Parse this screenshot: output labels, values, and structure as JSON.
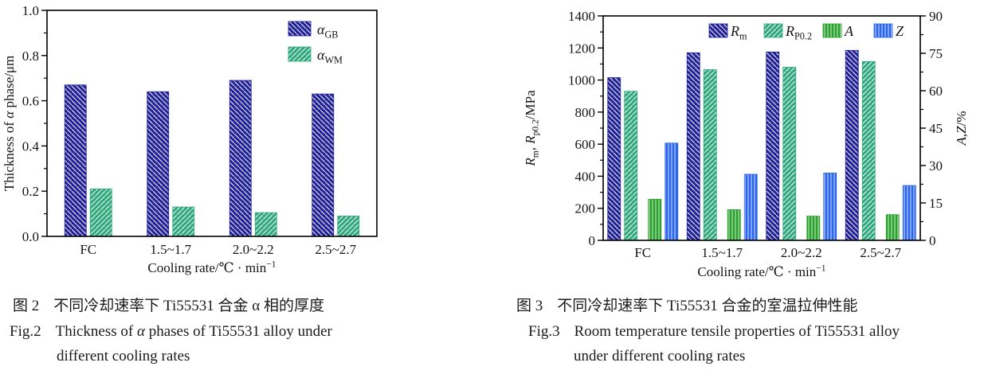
{
  "page": {
    "background": "#ffffff"
  },
  "colors": {
    "navy": "#21219a",
    "teal": "#2fa87e",
    "green": "#28a22b",
    "blue": "#2b66e8",
    "hatch_line": "#ffffff",
    "axis": "#000000",
    "text": "#141414"
  },
  "chart_data": [
    {
      "id": "fig2-chart",
      "type": "bar",
      "title": "",
      "categories": [
        "FC",
        "1.5~1.7",
        "2.0~2.2",
        "2.5~2.7"
      ],
      "xlabel": "Cooling rate/℃ · min−1",
      "xlabel_segments": [
        {
          "t": "Cooling rate/℃ · min"
        },
        {
          "t": "−1",
          "sup": true
        }
      ],
      "ylabel": "Thickness of α phase/μm",
      "ylabel_segments": [
        {
          "t": "Thickness of "
        },
        {
          "t": "α",
          "i": true
        },
        {
          "t": " phase/μm"
        }
      ],
      "ylim": [
        0,
        1.0
      ],
      "ytick_values": [
        0,
        0.2,
        0.4,
        0.6,
        0.8,
        1.0
      ],
      "ytick_labels": [
        "0.0",
        "0.2",
        "0.4",
        "0.6",
        "0.8",
        "1.0"
      ],
      "minor_tick_step": 0.1,
      "grid": false,
      "legend_position": "upper-right-inside",
      "legend_orientation": "vertical",
      "series": [
        {
          "name": "alpha-GB",
          "legend_text": "αGB",
          "legend_segments": [
            {
              "t": "α",
              "i": true
            },
            {
              "t": "GB",
              "sub": true
            }
          ],
          "values": [
            0.67,
            0.64,
            0.69,
            0.63
          ],
          "color": "#21219a",
          "hatch": "backslash"
        },
        {
          "name": "alpha-WM",
          "legend_text": "αWM",
          "legend_segments": [
            {
              "t": "α",
              "i": true
            },
            {
              "t": "WM",
              "sub": true
            }
          ],
          "values": [
            0.21,
            0.13,
            0.105,
            0.09
          ],
          "color": "#2fa87e",
          "hatch": "slash"
        }
      ]
    },
    {
      "id": "fig3-chart",
      "type": "bar",
      "title": "",
      "categories": [
        "FC",
        "1.5~1.7",
        "2.0~2.2",
        "2.5~2.7"
      ],
      "xlabel": "Cooling rate/℃ · min−1",
      "xlabel_segments": [
        {
          "t": "Cooling rate/℃ · min"
        },
        {
          "t": "−1",
          "sup": true
        }
      ],
      "ylabel_left": "Rm, Rp0.2/MPa",
      "ylabel_left_segments": [
        {
          "t": "R",
          "i": true
        },
        {
          "t": "m",
          "sub": true
        },
        {
          "t": ", "
        },
        {
          "t": "R",
          "i": true
        },
        {
          "t": "p0.2",
          "sub": true
        },
        {
          "t": "/MPa"
        }
      ],
      "ylabel_right": "A,Z/%",
      "ylabel_right_segments": [
        {
          "t": "A",
          "i": true
        },
        {
          "t": ","
        },
        {
          "t": "Z",
          "i": true
        },
        {
          "t": "/%"
        }
      ],
      "ylim_left": [
        0,
        1400
      ],
      "ytick_values_left": [
        0,
        200,
        400,
        600,
        800,
        1000,
        1200,
        1400
      ],
      "ytick_labels_left": [
        "0",
        "200",
        "400",
        "600",
        "800",
        "1000",
        "1200",
        "1400"
      ],
      "minor_tick_step_left": 100,
      "ylim_right": [
        0,
        90
      ],
      "ytick_values_right": [
        0,
        15,
        30,
        45,
        60,
        75,
        90
      ],
      "ytick_labels_right": [
        "0",
        "15",
        "30",
        "45",
        "60",
        "75",
        "90"
      ],
      "minor_tick_step_right": 7.5,
      "grid": false,
      "legend_position": "top-inside",
      "legend_orientation": "horizontal",
      "series": [
        {
          "name": "Rm",
          "axis": "left",
          "legend_text": "Rm",
          "legend_segments": [
            {
              "t": "R",
              "i": true
            },
            {
              "t": "m",
              "sub": true
            }
          ],
          "values": [
            1015,
            1170,
            1175,
            1185
          ],
          "color": "#21219a",
          "hatch": "backslash"
        },
        {
          "name": "Rp0.2",
          "axis": "left",
          "legend_text": "RP0.2",
          "legend_segments": [
            {
              "t": "R",
              "i": true
            },
            {
              "t": "P0.2",
              "sub": true
            }
          ],
          "values": [
            930,
            1065,
            1080,
            1115
          ],
          "color": "#2fa87e",
          "hatch": "slash"
        },
        {
          "name": "A",
          "axis": "right",
          "legend_text": "A",
          "legend_segments": [
            {
              "t": "A",
              "i": true
            }
          ],
          "values": [
            16.5,
            12.3,
            9.7,
            10.3
          ],
          "color": "#28a22b",
          "hatch": "vertical"
        },
        {
          "name": "Z",
          "axis": "right",
          "legend_text": "Z",
          "legend_segments": [
            {
              "t": "Z",
              "i": true
            }
          ],
          "values": [
            39,
            26.5,
            27,
            22
          ],
          "color": "#2b66e8",
          "hatch": "vertical"
        }
      ]
    }
  ],
  "captions": [
    {
      "zh_label": "图 2",
      "zh_text": "不同冷却速率下 Ti55531 合金 α 相的厚度",
      "en_label": "Fig.2",
      "en_line1_segments": [
        {
          "t": "Thickness of "
        },
        {
          "t": "α",
          "i": true
        },
        {
          "t": " phases of Ti55531 alloy under"
        }
      ],
      "en_line2": "different cooling rates"
    },
    {
      "zh_label": "图 3",
      "zh_text": "不同冷却速率下 Ti55531 合金的室温拉伸性能",
      "en_label": "Fig.3",
      "en_line1_segments": [
        {
          "t": "Room temperature tensile properties of Ti55531 alloy"
        }
      ],
      "en_line2": "under different cooling rates"
    }
  ]
}
